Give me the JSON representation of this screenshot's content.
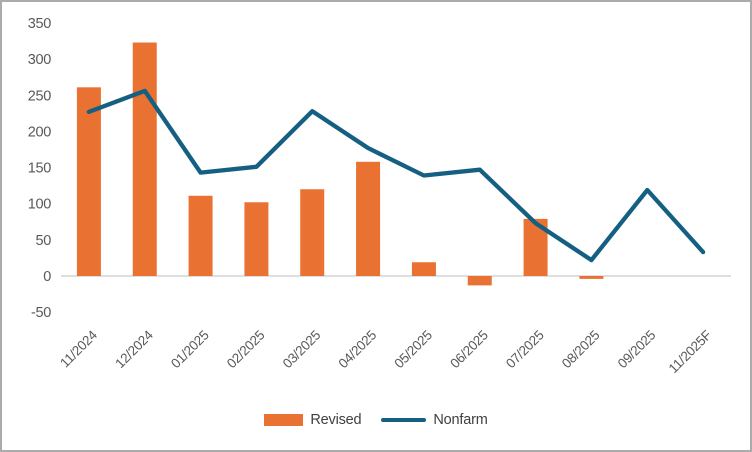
{
  "chart_frame": {
    "background": "#ffffff",
    "border_color": "#ababab"
  },
  "chart_data": {
    "type": "combo",
    "categories": [
      "11/2024",
      "12/2024",
      "01/2025",
      "02/2025",
      "03/2025",
      "04/2025",
      "05/2025",
      "06/2025",
      "07/2025",
      "08/2025",
      "09/2025",
      "11/2025F"
    ],
    "series": [
      {
        "name": "Revised",
        "type": "bar",
        "color": "#E97132",
        "values": [
          261,
          323,
          111,
          102,
          120,
          158,
          19,
          -13,
          79,
          -4,
          null,
          null
        ]
      },
      {
        "name": "Nonfarm",
        "type": "line",
        "color": "#156082",
        "values": [
          227,
          256,
          143,
          151,
          228,
          177,
          139,
          147,
          73,
          22,
          119,
          33
        ]
      }
    ],
    "ylim": [
      -50,
      350
    ],
    "yticks": [
      350,
      300,
      250,
      200,
      150,
      100,
      50,
      0,
      -50
    ],
    "grid": false,
    "legend_position": "bottom",
    "axis_label_color": "#595959",
    "axis_line_color": "#D9D9D9",
    "legend_text_color": "#404040"
  }
}
